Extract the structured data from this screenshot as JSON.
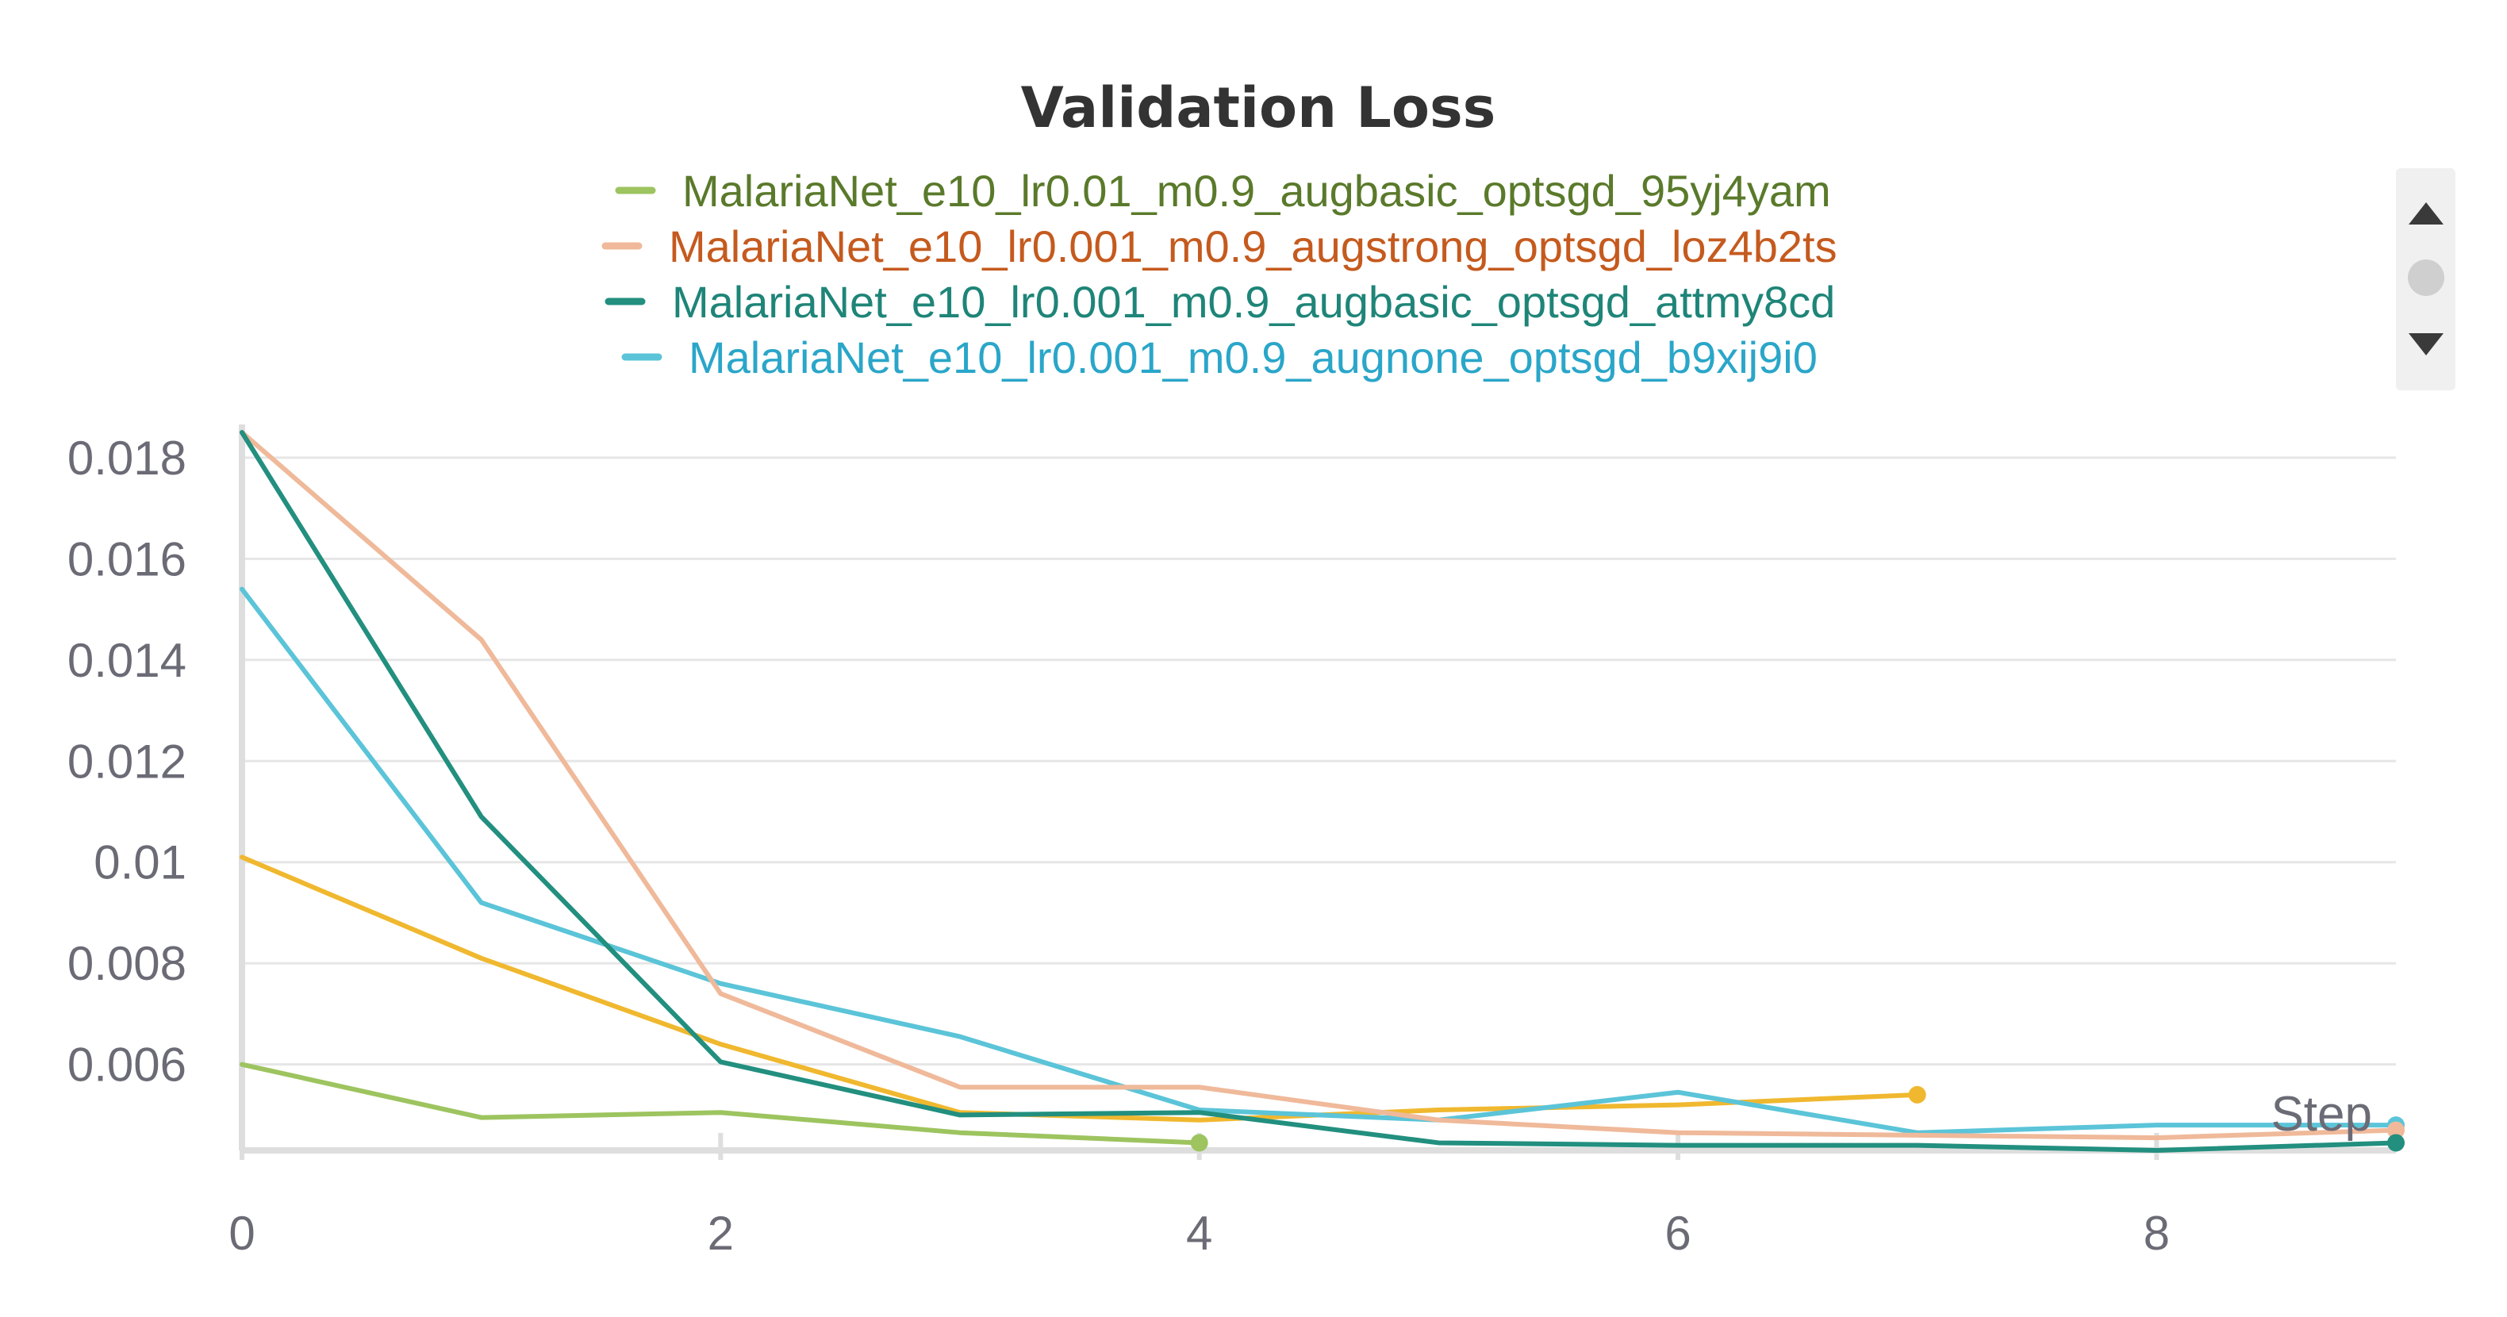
{
  "chart_data": {
    "type": "line",
    "title": "Validation Loss",
    "xlabel": "Step",
    "ylabel": "",
    "xlim": [
      0,
      9
    ],
    "ylim": [
      0.0043,
      0.0185
    ],
    "x_ticks": [
      0,
      2,
      4,
      6,
      8
    ],
    "y_ticks": [
      0.006,
      0.008,
      0.01,
      0.012,
      0.014,
      0.016,
      0.018
    ],
    "y_tick_labels": [
      "0.006",
      "0.008",
      "0.01",
      "0.012",
      "0.014",
      "0.016",
      "0.018"
    ],
    "grid": true,
    "legend_position": "top-center",
    "series": [
      {
        "name": "MalariaNet_e10_lr0.01_m0.9_augbasic_optsgd_95yj4yam",
        "color": "#9dc45f",
        "legend_text_color": "#5a7a2b",
        "x": [
          0,
          1,
          2,
          3,
          4
        ],
        "y": [
          0.006,
          0.00495,
          0.00505,
          0.00465,
          0.00445
        ]
      },
      {
        "name": "MalariaNet_e10_lr0.001_m0.9_augstrong_optsgd_loz4b2ts",
        "color": "#efb99a",
        "legend_text_color": "#c55a1e",
        "x": [
          0,
          1,
          2,
          3,
          4,
          5,
          6,
          7,
          8,
          9
        ],
        "y": [
          0.0185,
          0.0144,
          0.0074,
          0.00555,
          0.00555,
          0.0049,
          0.00465,
          0.0046,
          0.00455,
          0.0047
        ]
      },
      {
        "name": "MalariaNet_e10_lr0.001_m0.9_augbasic_optsgd_attmy8cd",
        "color": "#228f7f",
        "legend_text_color": "#1e8578",
        "x": [
          0,
          1,
          2,
          3,
          4,
          5,
          6,
          7,
          8,
          9
        ],
        "y": [
          0.0185,
          0.0109,
          0.00605,
          0.005,
          0.00505,
          0.00445,
          0.0044,
          0.0044,
          0.0043,
          0.00445
        ]
      },
      {
        "name": "MalariaNet_e10_lr0.001_m0.9_augnone_optsgd_b9xij9i0",
        "color": "#5bc4d8",
        "legend_text_color": "#2aa6c9",
        "x": [
          0,
          1,
          2,
          3,
          4,
          5,
          6,
          7,
          8,
          9
        ],
        "y": [
          0.0154,
          0.0092,
          0.0076,
          0.00655,
          0.0051,
          0.0049,
          0.00545,
          0.00465,
          0.0048,
          0.0048
        ]
      },
      {
        "name": "",
        "color": "#f0b82f",
        "legend_text_color": "",
        "x": [
          0,
          1,
          2,
          3,
          4,
          5,
          6,
          7
        ],
        "y": [
          0.0101,
          0.0081,
          0.0064,
          0.00505,
          0.0049,
          0.0051,
          0.0052,
          0.0054
        ]
      }
    ]
  },
  "scroll_control": {
    "up_icon": "triangle-up-icon",
    "thumb_icon": "circle-icon",
    "down_icon": "triangle-down-icon"
  }
}
